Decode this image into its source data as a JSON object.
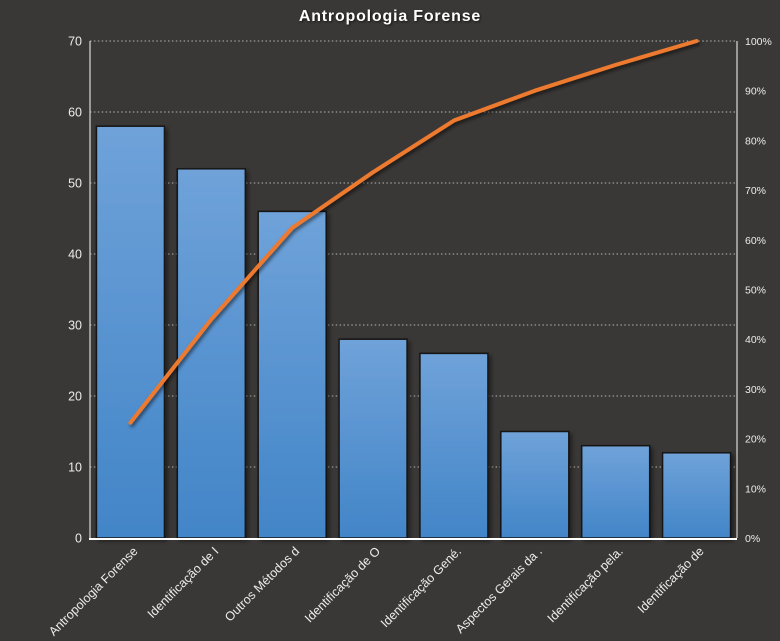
{
  "chart_data": {
    "type": "bar",
    "subtype": "pareto-combo-bar-line",
    "title": "Antropologia Forense",
    "categories": [
      "Antropologia Forense",
      "Identificação de I",
      "Outros Métodos d",
      "Identificação de O",
      "Identificação Gené.",
      "Aspectos Gerais da .",
      "Identificação pela.",
      "Identificação de"
    ],
    "series": [
      {
        "id": "frequency-bars",
        "type": "bar",
        "axis": "left",
        "values": [
          58,
          52,
          46,
          28,
          26,
          15,
          13,
          12
        ]
      },
      {
        "id": "cumulative-line",
        "type": "line",
        "axis": "right",
        "values": [
          23.2,
          44.0,
          62.4,
          73.6,
          84.0,
          90.0,
          95.2,
          100.0
        ]
      }
    ],
    "left_axis": {
      "min": 0,
      "max": 70,
      "step": 10,
      "tick_labels": [
        "0",
        "10",
        "20",
        "30",
        "40",
        "50",
        "60",
        "70"
      ]
    },
    "right_axis": {
      "min": 0,
      "max": 100,
      "step": 10,
      "tick_labels": [
        "0%",
        "10%",
        "20%",
        "30%",
        "40%",
        "50%",
        "60%",
        "70%",
        "80%",
        "90%",
        "100%"
      ]
    },
    "grid": true,
    "legend": "none",
    "xlabel": "",
    "ylabel": ""
  },
  "colors": {
    "background": "#3a3836",
    "bar_fill_top": "#6fa2d9",
    "bar_fill_bottom": "#4285c8",
    "bar_stroke": "#141414",
    "line": "#ed7a2e",
    "grid": "#c9c9c9",
    "axis": "#d9d9d9",
    "baseline": "#ffffff",
    "tick_text": "#ececec",
    "title_text": "#ffffff"
  }
}
